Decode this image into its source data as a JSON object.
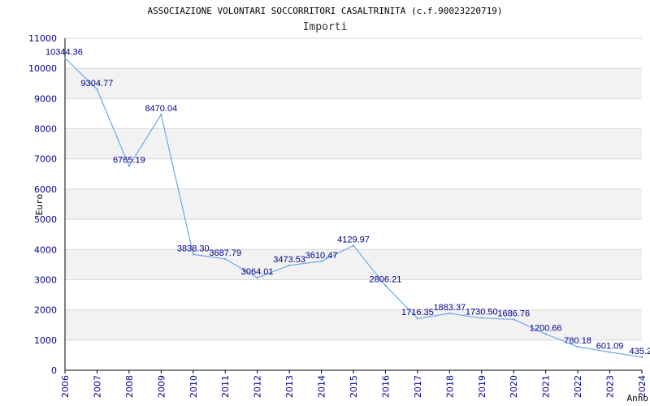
{
  "chart_data": {
    "type": "line",
    "title": "ASSOCIAZIONE VOLONTARI SOCCORRITORI CASALTRINITA (c.f.90023220719)",
    "subtitle": "Importi",
    "xlabel": "Anno",
    "ylabel": "Euro",
    "ylim": [
      0,
      11000
    ],
    "yticks": [
      0,
      1000,
      2000,
      3000,
      4000,
      5000,
      6000,
      7000,
      8000,
      9000,
      10000,
      11000
    ],
    "grid": "horizontal-banded",
    "series_color": "#6fa8e8",
    "band_color": "#f2f2f2",
    "categories": [
      "2006",
      "2007",
      "2008",
      "2009",
      "2010",
      "2011",
      "2012",
      "2013",
      "2014",
      "2015",
      "2016",
      "2017",
      "2018",
      "2019",
      "2020",
      "2021",
      "2022",
      "2023",
      "2024"
    ],
    "values": [
      10344.36,
      9304.77,
      6765.19,
      8470.04,
      3838.3,
      3687.79,
      3064.01,
      3473.53,
      3610.47,
      4129.97,
      2806.21,
      1716.35,
      1883.37,
      1730.5,
      1686.76,
      1200.66,
      780.18,
      601.09,
      435.2
    ],
    "value_labels": [
      "10344.36",
      "9304.77",
      "6765.19",
      "8470.04",
      "3838.30",
      "3687.79",
      "3064.01",
      "3473.53",
      "3610.47",
      "4129.97",
      "2806.21",
      "1716.35",
      "1883.37",
      "1730.50",
      "1686.76",
      "1200.66",
      "780.18",
      "601.09",
      "435.2"
    ]
  }
}
